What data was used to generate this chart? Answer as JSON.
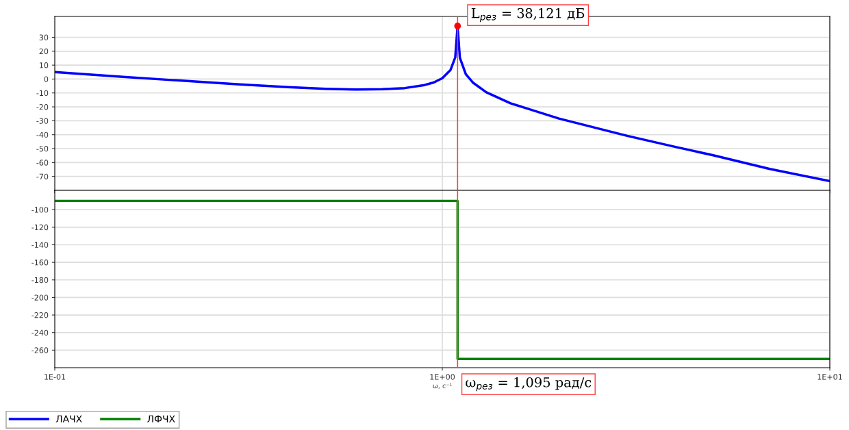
{
  "chart_data": [
    {
      "type": "line",
      "x": [
        0.1,
        0.15,
        0.2,
        0.3,
        0.4,
        0.5,
        0.6,
        0.7,
        0.8,
        0.9,
        0.95,
        1.0,
        1.05,
        1.08,
        1.095,
        1.11,
        1.15,
        1.2,
        1.3,
        1.5,
        2,
        3,
        4,
        5,
        7,
        10
      ],
      "series": [
        {
          "name": "ЛАЧХ",
          "color": "#0000ff",
          "values": [
            5,
            1.6,
            -0.7,
            -3.8,
            -5.8,
            -7,
            -7.5,
            -7.3,
            -6.5,
            -4.3,
            -2.5,
            0.6,
            6.5,
            15.6,
            38.121,
            15.3,
            3.5,
            -2.6,
            -9.6,
            -17.4,
            -28.4,
            -40.8,
            -48.8,
            -54.8,
            -64.6,
            -73.4
          ]
        }
      ],
      "xlim": [
        0.1,
        10
      ],
      "log": "x",
      "ylim": [
        -80,
        45
      ],
      "yticks": [
        30,
        20,
        10,
        0,
        -10,
        -20,
        -30,
        -40,
        -50,
        -60,
        -70
      ],
      "tick_labels": "y",
      "grid": true,
      "legend": "bottom",
      "ref_lines": [
        {
          "axis": "x",
          "value": 1.095,
          "color": "#ff4040"
        }
      ],
      "annotations": [
        {
          "text": "L$_{рез}$ = 38,121 дБ",
          "x": 1.095,
          "y": 38.121
        }
      ]
    },
    {
      "type": "line",
      "x": [
        0.1,
        1.095,
        1.095,
        10
      ],
      "series": [
        {
          "name": "ЛФЧХ",
          "color": "#008000",
          "values": [
            -90,
            -90,
            -270,
            -270
          ]
        }
      ],
      "xlim": [
        0.1,
        10
      ],
      "log": "x",
      "ylim": [
        -280,
        -78
      ],
      "yticks": [
        -100,
        -120,
        -140,
        -160,
        -180,
        -200,
        -220,
        -240,
        -260
      ],
      "xticks": [
        {
          "value": 0.1,
          "label": "1E-01"
        },
        {
          "value": 1,
          "label": "1E+00"
        },
        {
          "value": 10,
          "label": "1E+01"
        }
      ],
      "xlabel": "ω, c⁻¹",
      "grid": true,
      "legend": "bottom",
      "ref_lines": [
        {
          "axis": "x",
          "value": 1.095,
          "color": "#ff4040"
        }
      ],
      "annotations": [
        "ω$_{рез}$ = 1,095 рад/с"
      ]
    }
  ]
}
